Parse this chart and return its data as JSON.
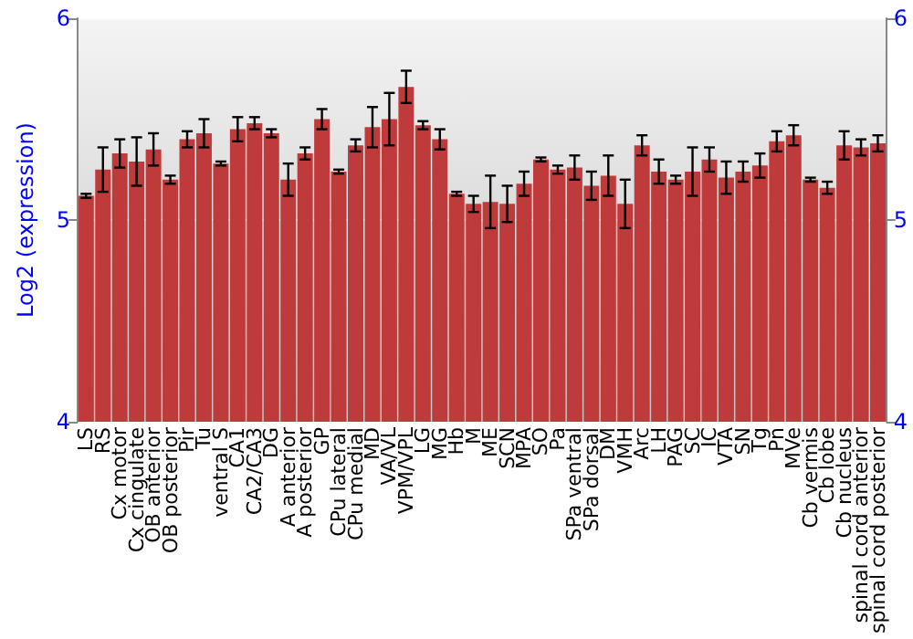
{
  "chart_data": {
    "type": "bar",
    "ylabel": "Log2 (expression)",
    "categories": [
      "LS",
      "RS",
      "Cx motor",
      "Cx cingulate",
      "OB anterior",
      "OB posterior",
      "Pir",
      "Tu",
      "ventral S",
      "CA1",
      "CA2/CA3",
      "DG",
      "A anterior",
      "A posterior",
      "GP",
      "CPu lateral",
      "CPu medial",
      "MD",
      "VA/VL",
      "VPM/VPL",
      "LG",
      "MG",
      "Hb",
      "M",
      "ME",
      "SCN",
      "MPA",
      "SO",
      "Pa",
      "SPa ventral",
      "SPa dorsal",
      "DM",
      "VMH",
      "Arc",
      "LH",
      "PAG",
      "SC",
      "IC",
      "VTA",
      "SN",
      "Tg",
      "Pn",
      "MVe",
      "Cb vermis",
      "Cb lobe",
      "Cb nucleus",
      "spinal cord anterior",
      "spinal cord posterior"
    ],
    "values": [
      5.12,
      5.25,
      5.33,
      5.29,
      5.35,
      5.2,
      5.4,
      5.43,
      5.28,
      5.45,
      5.48,
      5.43,
      5.2,
      5.33,
      5.5,
      5.24,
      5.37,
      5.46,
      5.5,
      5.66,
      5.47,
      5.4,
      5.13,
      5.08,
      5.09,
      5.08,
      5.18,
      5.3,
      5.25,
      5.26,
      5.17,
      5.22,
      5.08,
      5.37,
      5.24,
      5.2,
      5.24,
      5.3,
      5.21,
      5.24,
      5.27,
      5.39,
      5.42,
      5.2,
      5.16,
      5.37,
      5.36,
      5.38
    ],
    "errors": [
      0.01,
      0.11,
      0.07,
      0.12,
      0.08,
      0.02,
      0.04,
      0.07,
      0.01,
      0.06,
      0.03,
      0.02,
      0.08,
      0.03,
      0.05,
      0.01,
      0.03,
      0.1,
      0.13,
      0.08,
      0.02,
      0.05,
      0.01,
      0.04,
      0.13,
      0.09,
      0.06,
      0.01,
      0.02,
      0.06,
      0.07,
      0.1,
      0.12,
      0.05,
      0.06,
      0.02,
      0.12,
      0.06,
      0.08,
      0.05,
      0.06,
      0.05,
      0.05,
      0.01,
      0.03,
      0.07,
      0.04,
      0.04
    ],
    "color": "#bf3a3a",
    "ylim": [
      4,
      6
    ],
    "yticks": [
      4,
      5,
      6
    ],
    "y2lim": [
      4,
      6
    ],
    "y2ticks": [
      4,
      5,
      6
    ],
    "grid": "y"
  }
}
